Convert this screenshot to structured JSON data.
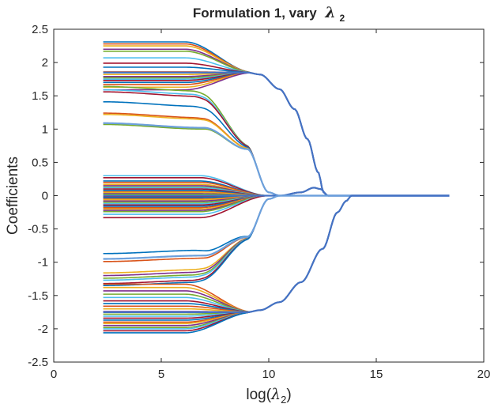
{
  "chart_data": {
    "type": "line",
    "title": "Formulation 1, vary",
    "title_symbol": "λ",
    "title_subscript": "2",
    "xlabel_prefix": "log(",
    "xlabel_symbol": "λ",
    "xlabel_subscript": "2",
    "xlabel_suffix": ")",
    "ylabel": "Coefficients",
    "xlim": [
      0,
      20
    ],
    "ylim": [
      -2.5,
      2.5
    ],
    "xticks": [
      0,
      5,
      10,
      15,
      20
    ],
    "xtick_labels": [
      "0",
      "5",
      "10",
      "15",
      "20"
    ],
    "yticks": [
      2.5,
      2,
      1.5,
      1,
      0.5,
      0,
      -0.5,
      -1,
      -1.5,
      -2,
      -2.5
    ],
    "ytick_labels": [
      "2.5",
      "2",
      "1.5",
      "1",
      "0.5",
      "0",
      "-0.5",
      "-1",
      "-1.5",
      "-2",
      "-2.5"
    ],
    "grid": false,
    "legend": false,
    "colors": [
      "#0072BD",
      "#D95319",
      "#EDB120",
      "#7E2F8E",
      "#77AC30",
      "#4DBEEE",
      "#A2142F"
    ],
    "highlight_colors": [
      "#4472C4",
      "#6CA0DC"
    ],
    "x_start": 2.3,
    "x_end": 18.4,
    "groups": [
      {
        "cluster_level": 1.85,
        "merge_x": 9.3,
        "initial_values": [
          2.31,
          2.28,
          2.25,
          2.2,
          2.17,
          2.07,
          1.99,
          1.93,
          1.86,
          1.82,
          1.79,
          1.77,
          1.75,
          1.73,
          1.7,
          1.67,
          1.63,
          1.59
        ],
        "dominant": {
          "x": [
            2.3,
            7.0,
            9.0,
            9.6,
            10.5,
            11.2,
            11.8,
            12.3,
            12.55,
            12.75,
            13.2,
            18.4
          ],
          "y": [
            1.85,
            1.85,
            1.85,
            1.82,
            1.6,
            1.3,
            0.85,
            0.35,
            0.05,
            0.0,
            0.0,
            0.0
          ]
        }
      },
      {
        "cluster_level": 0.55,
        "merge_x": 9.6,
        "initial_values": [
          1.1,
          1.05,
          1.02,
          0.87,
          0.7,
          0.68,
          0.55,
          0.53
        ],
        "dominant": {
          "x": [
            2.3,
            7.0,
            9.0,
            10.0,
            10.5,
            18.4
          ],
          "y": [
            1.09,
            1.02,
            0.7,
            0.05,
            0.0,
            0.0
          ]
        }
      },
      {
        "cluster_level": 0.0,
        "merge_x": 10.0,
        "initial_values": [
          0.3,
          0.27,
          0.22,
          0.2,
          0.17,
          0.15,
          0.13,
          0.12,
          0.1,
          0.08,
          0.06,
          0.05,
          0.03,
          0.02,
          0.0,
          -0.02,
          -0.03,
          -0.05,
          -0.06,
          -0.08,
          -0.1,
          -0.12,
          -0.14,
          -0.16,
          -0.18,
          -0.2,
          -0.22,
          -0.24,
          -0.28,
          -0.33
        ],
        "dominant": {
          "x": [
            2.3,
            9.5,
            10.5,
            11.5,
            12.1,
            12.4,
            12.75,
            13.2,
            18.4
          ],
          "y": [
            0.0,
            0.0,
            0.0,
            0.05,
            0.12,
            0.1,
            0.0,
            0.0,
            0.0
          ]
        }
      },
      {
        "cluster_level": -0.63,
        "merge_x": 9.6,
        "initial_values": [
          -0.55,
          -0.67,
          -0.84,
          -0.88,
          -0.92,
          -0.95,
          -1.0,
          -1.03
        ],
        "dominant": {
          "x": [
            2.3,
            7.0,
            9.0,
            10.0,
            10.5,
            18.4
          ],
          "y": [
            -0.95,
            -0.9,
            -0.62,
            -0.05,
            0.0,
            0.0
          ]
        }
      },
      {
        "cluster_level": -1.75,
        "merge_x": 9.3,
        "initial_values": [
          -1.33,
          -1.38,
          -1.43,
          -1.48,
          -1.53,
          -1.58,
          -1.62,
          -1.66,
          -1.7,
          -1.74,
          -1.78,
          -1.81,
          -1.84,
          -1.87,
          -1.9,
          -1.92,
          -1.95,
          -1.98,
          -2.0,
          -2.03,
          -2.06
        ],
        "dominant": {
          "x": [
            2.3,
            7.0,
            9.0,
            9.6,
            10.5,
            11.5,
            12.5,
            13.2,
            13.6,
            13.85,
            18.4
          ],
          "y": [
            -1.75,
            -1.75,
            -1.75,
            -1.72,
            -1.6,
            -1.3,
            -0.8,
            -0.25,
            -0.08,
            0.0,
            0.0
          ]
        }
      }
    ]
  }
}
